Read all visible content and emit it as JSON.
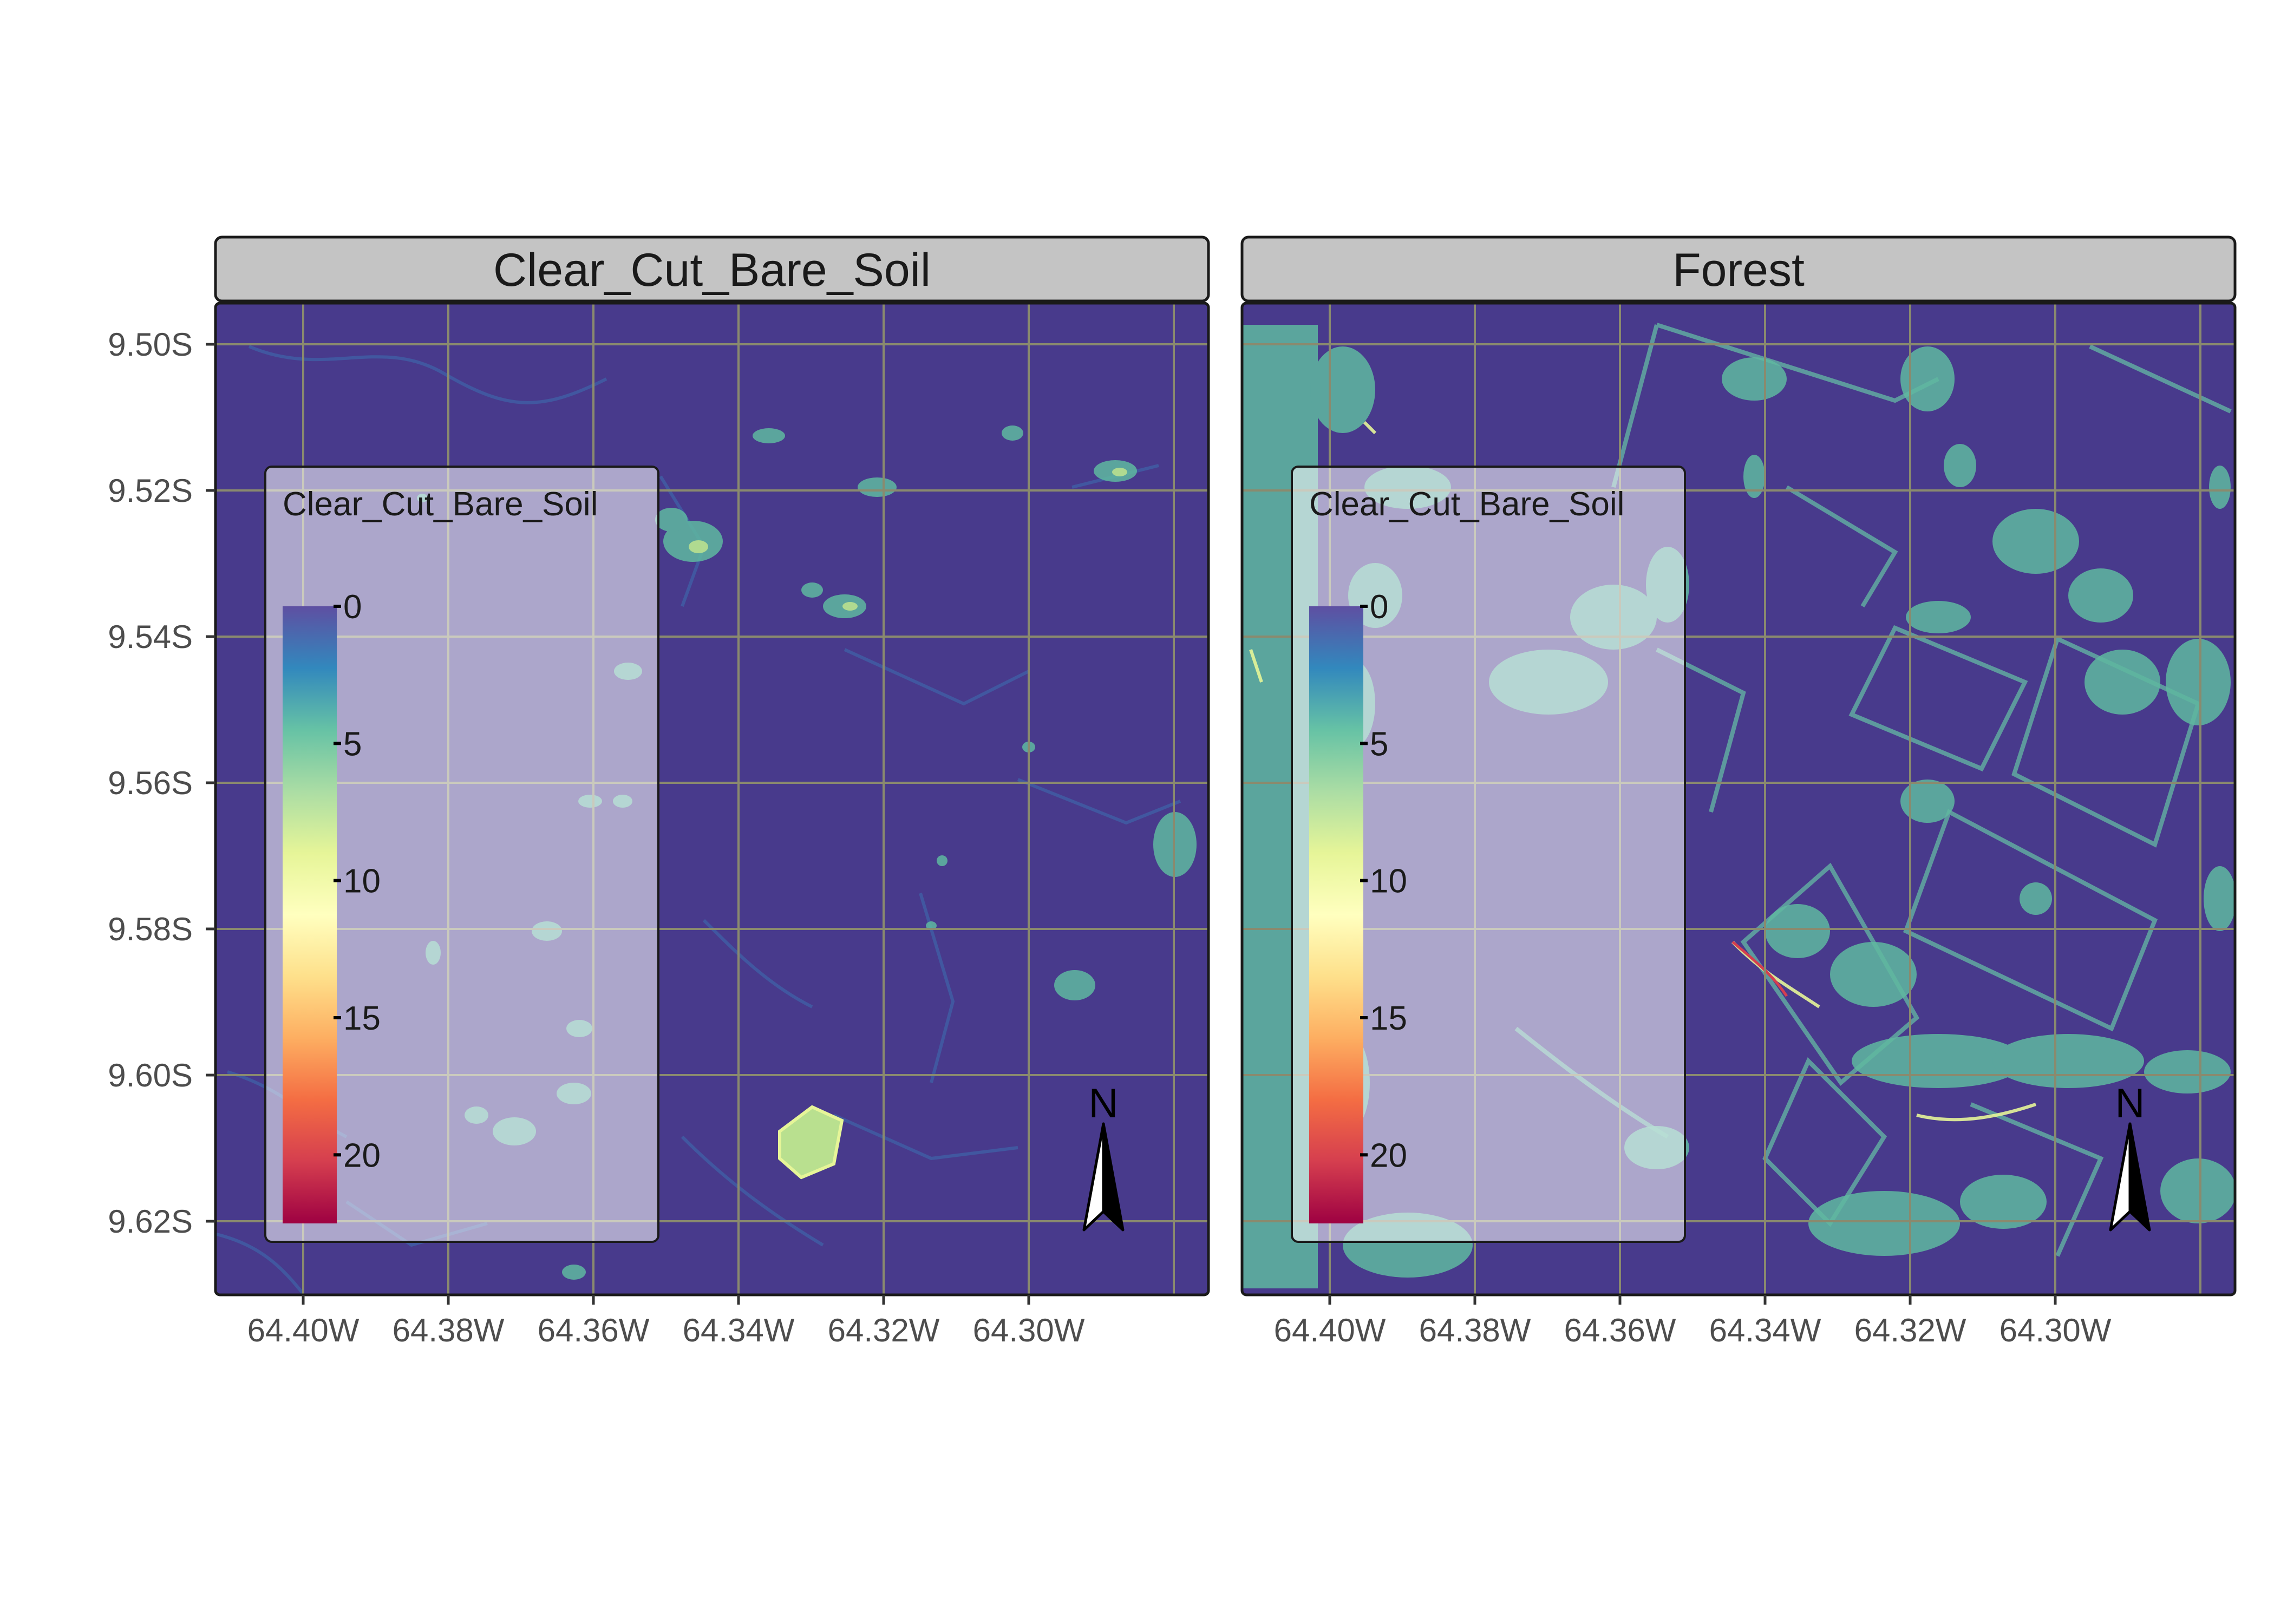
{
  "panels": [
    {
      "id": "clear-cut",
      "title": "Clear_Cut_Bare_Soil",
      "legend_title": "Clear_Cut_Bare_Soil"
    },
    {
      "id": "forest",
      "title": "Forest",
      "legend_title": "Clear_Cut_Bare_Soil"
    }
  ],
  "y_ticks": [
    "9.50S",
    "9.52S",
    "9.54S",
    "9.56S",
    "9.58S",
    "9.60S",
    "9.62S"
  ],
  "x_ticks": [
    "64.40W",
    "64.38W",
    "64.36W",
    "64.34W",
    "64.32W",
    "64.30W"
  ],
  "legend": {
    "labels": [
      "0",
      "5",
      "10",
      "15",
      "20"
    ],
    "values": [
      0,
      5,
      10,
      15,
      20
    ],
    "range": [
      0,
      22.5
    ],
    "palette": [
      "#5e4fa2",
      "#3288bd",
      "#66c2a5",
      "#abdda4",
      "#e6f598",
      "#ffffbf",
      "#fee08b",
      "#fdae61",
      "#f46d43",
      "#d53e4f",
      "#9e0142"
    ]
  },
  "north_arrow": {
    "label": "N"
  },
  "colors": {
    "background_raster": "#483a8c",
    "strip_fill": "#c4c4c4",
    "grid": "#8a8a6e",
    "legend_bg": "#ffffff"
  }
}
